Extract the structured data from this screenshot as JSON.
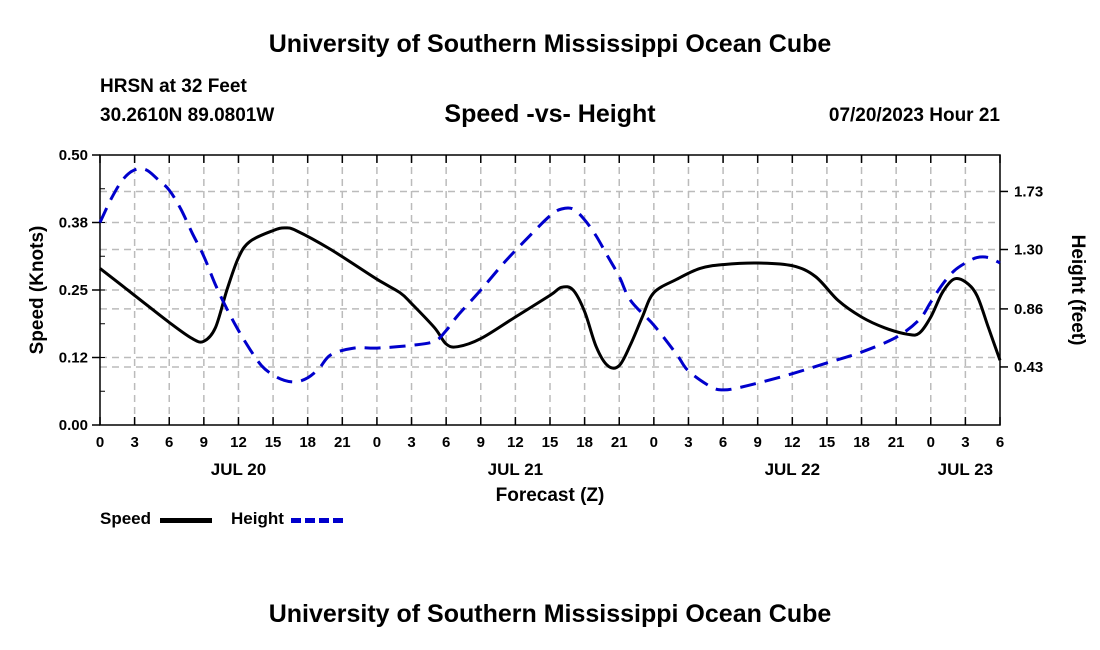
{
  "header": {
    "title": "University of Southern Mississippi Ocean Cube",
    "station": "HRSN at 32 Feet",
    "coordinates": "30.2610N  89.0801W",
    "chart_title": "Speed -vs- Height",
    "datetime": "07/20/2023 Hour 21"
  },
  "footer": {
    "title": "University of Southern Mississippi Ocean Cube"
  },
  "legend": {
    "speed": "Speed",
    "height": "Height"
  },
  "colors": {
    "speed": "#000000",
    "height": "#0000cc",
    "grid": "#bbbbbb"
  },
  "chart_data": {
    "type": "line",
    "title": "Speed -vs- Height",
    "xlabel": "Forecast (Z)",
    "ylabel": "Speed (Knots)",
    "y2label": "Height (feet)",
    "x_range_hours": [
      0,
      78
    ],
    "x_ticks": [
      {
        "h": 0,
        "label": "0"
      },
      {
        "h": 3,
        "label": "3"
      },
      {
        "h": 6,
        "label": "6"
      },
      {
        "h": 9,
        "label": "9"
      },
      {
        "h": 12,
        "label": "12"
      },
      {
        "h": 15,
        "label": "15"
      },
      {
        "h": 18,
        "label": "18"
      },
      {
        "h": 21,
        "label": "21"
      },
      {
        "h": 24,
        "label": "0"
      },
      {
        "h": 27,
        "label": "3"
      },
      {
        "h": 30,
        "label": "6"
      },
      {
        "h": 33,
        "label": "9"
      },
      {
        "h": 36,
        "label": "12"
      },
      {
        "h": 39,
        "label": "15"
      },
      {
        "h": 42,
        "label": "18"
      },
      {
        "h": 45,
        "label": "21"
      },
      {
        "h": 48,
        "label": "0"
      },
      {
        "h": 51,
        "label": "3"
      },
      {
        "h": 54,
        "label": "6"
      },
      {
        "h": 57,
        "label": "9"
      },
      {
        "h": 60,
        "label": "12"
      },
      {
        "h": 63,
        "label": "15"
      },
      {
        "h": 66,
        "label": "18"
      },
      {
        "h": 69,
        "label": "21"
      },
      {
        "h": 72,
        "label": "0"
      },
      {
        "h": 75,
        "label": "3"
      },
      {
        "h": 78,
        "label": "6"
      }
    ],
    "day_labels": [
      {
        "h": 12,
        "label": "JUL 20"
      },
      {
        "h": 36,
        "label": "JUL 21"
      },
      {
        "h": 60,
        "label": "JUL 22"
      },
      {
        "h": 75,
        "label": "JUL 23"
      }
    ],
    "y_left": {
      "range": [
        0,
        0.5
      ],
      "ticks": [
        "0.00",
        "0.12",
        "0.25",
        "0.38",
        "0.50"
      ],
      "tick_values": [
        0,
        0.125,
        0.25,
        0.375,
        0.5
      ]
    },
    "y_right": {
      "range": [
        0.0,
        2.0
      ],
      "ticks": [
        "0.43",
        "0.86",
        "1.30",
        "1.73"
      ],
      "tick_values": [
        0.43,
        0.86,
        1.3,
        1.73
      ]
    },
    "series": [
      {
        "name": "Speed",
        "axis": "left",
        "style": "solid",
        "points": [
          [
            0,
            0.29
          ],
          [
            3,
            0.24
          ],
          [
            6,
            0.19
          ],
          [
            8,
            0.16
          ],
          [
            9,
            0.155
          ],
          [
            10,
            0.18
          ],
          [
            11,
            0.25
          ],
          [
            12,
            0.31
          ],
          [
            13,
            0.34
          ],
          [
            15,
            0.36
          ],
          [
            16,
            0.365
          ],
          [
            17,
            0.36
          ],
          [
            20,
            0.325
          ],
          [
            24,
            0.27
          ],
          [
            26,
            0.245
          ],
          [
            27,
            0.225
          ],
          [
            29,
            0.18
          ],
          [
            30,
            0.15
          ],
          [
            31,
            0.145
          ],
          [
            33,
            0.16
          ],
          [
            36,
            0.2
          ],
          [
            39,
            0.24
          ],
          [
            40,
            0.255
          ],
          [
            41,
            0.25
          ],
          [
            42,
            0.21
          ],
          [
            43,
            0.145
          ],
          [
            44,
            0.11
          ],
          [
            45,
            0.11
          ],
          [
            46,
            0.15
          ],
          [
            47,
            0.2
          ],
          [
            48,
            0.245
          ],
          [
            50,
            0.27
          ],
          [
            52,
            0.29
          ],
          [
            54,
            0.297
          ],
          [
            57,
            0.3
          ],
          [
            60,
            0.295
          ],
          [
            62,
            0.275
          ],
          [
            64,
            0.23
          ],
          [
            66,
            0.2
          ],
          [
            68,
            0.18
          ],
          [
            70,
            0.168
          ],
          [
            71,
            0.17
          ],
          [
            72,
            0.2
          ],
          [
            73,
            0.245
          ],
          [
            74,
            0.27
          ],
          [
            75,
            0.265
          ],
          [
            76,
            0.24
          ],
          [
            77,
            0.18
          ],
          [
            78,
            0.12
          ]
        ]
      },
      {
        "name": "Height",
        "axis": "right",
        "style": "dashed",
        "points": [
          [
            0,
            1.5
          ],
          [
            1,
            1.68
          ],
          [
            2,
            1.82
          ],
          [
            3,
            1.89
          ],
          [
            4,
            1.89
          ],
          [
            5,
            1.82
          ],
          [
            6,
            1.74
          ],
          [
            7,
            1.6
          ],
          [
            8,
            1.42
          ],
          [
            9,
            1.25
          ],
          [
            10,
            1.04
          ],
          [
            11,
            0.86
          ],
          [
            12,
            0.7
          ],
          [
            13,
            0.56
          ],
          [
            14,
            0.44
          ],
          [
            15,
            0.37
          ],
          [
            16,
            0.33
          ],
          [
            17,
            0.32
          ],
          [
            18,
            0.35
          ],
          [
            19,
            0.42
          ],
          [
            20,
            0.52
          ],
          [
            22,
            0.57
          ],
          [
            24,
            0.57
          ],
          [
            27,
            0.59
          ],
          [
            29,
            0.62
          ],
          [
            30,
            0.7
          ],
          [
            31,
            0.81
          ],
          [
            33,
            1.0
          ],
          [
            35,
            1.2
          ],
          [
            37,
            1.38
          ],
          [
            39,
            1.55
          ],
          [
            40,
            1.6
          ],
          [
            41,
            1.6
          ],
          [
            42,
            1.52
          ],
          [
            43,
            1.4
          ],
          [
            44,
            1.25
          ],
          [
            45,
            1.1
          ],
          [
            46,
            0.92
          ],
          [
            48,
            0.74
          ],
          [
            50,
            0.52
          ],
          [
            51,
            0.4
          ],
          [
            53,
            0.28
          ],
          [
            54,
            0.26
          ],
          [
            55,
            0.27
          ],
          [
            57,
            0.31
          ],
          [
            60,
            0.38
          ],
          [
            63,
            0.46
          ],
          [
            66,
            0.54
          ],
          [
            69,
            0.65
          ],
          [
            71,
            0.78
          ],
          [
            72,
            0.91
          ],
          [
            73,
            1.04
          ],
          [
            74,
            1.14
          ],
          [
            75,
            1.2
          ],
          [
            76,
            1.24
          ],
          [
            77,
            1.24
          ],
          [
            78,
            1.2
          ]
        ]
      }
    ]
  }
}
